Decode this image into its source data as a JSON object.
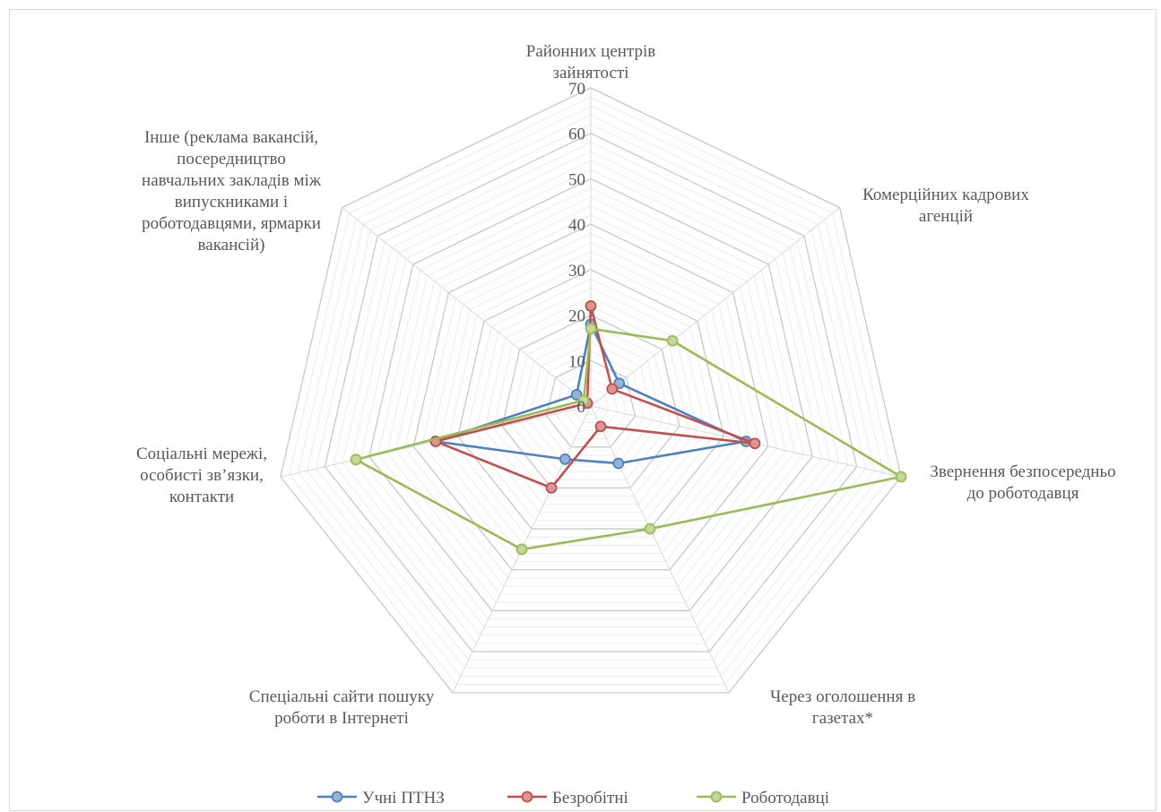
{
  "chart_data": {
    "type": "radar",
    "categories": [
      [
        "Районних центрів",
        "зайнятості"
      ],
      [
        "Комерційних кадрових",
        "агенцій"
      ],
      [
        "Звернення безпосередньо",
        "до роботодавця"
      ],
      [
        "Через оголошення в",
        "газетах*"
      ],
      [
        "Спеціальні сайти пошуку",
        "роботи в Інтернеті"
      ],
      [
        "Соціальні мережі,",
        "особисті зв’язки,",
        "контакти"
      ],
      [
        "Інше (реклама вакансій,",
        "посередництво",
        "навчальних закладів між",
        "випускниками і",
        "роботодавцями, ярмарки",
        "вакансій)"
      ]
    ],
    "ticks": [
      "0",
      "10",
      "20",
      "30",
      "40",
      "50",
      "60",
      "70"
    ],
    "rlim": [
      0,
      70
    ],
    "series": [
      {
        "name": "Учні ПТНЗ",
        "color": "#4f81bd",
        "fill": "#95b3d7",
        "values": [
          18,
          8,
          35,
          14,
          13,
          35,
          4
        ]
      },
      {
        "name": "Безробітні",
        "color": "#c0504d",
        "fill": "#da9694",
        "values": [
          22,
          6,
          37,
          5,
          20,
          35,
          1
        ]
      },
      {
        "name": "Роботодавці",
        "color": "#9bbb59",
        "fill": "#c4d79b",
        "values": [
          17,
          23,
          70,
          30,
          35,
          53,
          2
        ]
      }
    ],
    "grid": true,
    "legend_position": "bottom"
  }
}
